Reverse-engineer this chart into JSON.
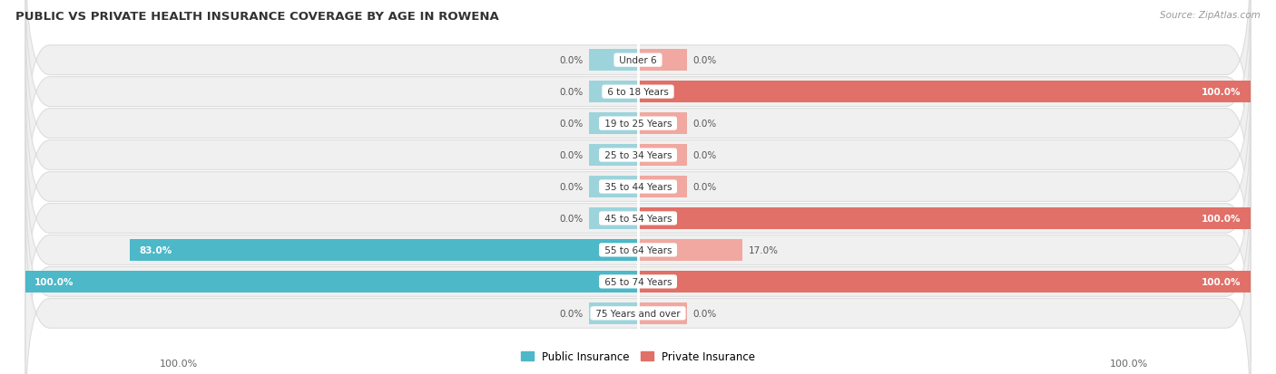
{
  "title": "PUBLIC VS PRIVATE HEALTH INSURANCE COVERAGE BY AGE IN ROWENA",
  "source": "Source: ZipAtlas.com",
  "age_groups": [
    "Under 6",
    "6 to 18 Years",
    "19 to 25 Years",
    "25 to 34 Years",
    "35 to 44 Years",
    "45 to 54 Years",
    "55 to 64 Years",
    "65 to 74 Years",
    "75 Years and over"
  ],
  "public": [
    0.0,
    0.0,
    0.0,
    0.0,
    0.0,
    0.0,
    83.0,
    100.0,
    0.0
  ],
  "private": [
    0.0,
    100.0,
    0.0,
    0.0,
    0.0,
    100.0,
    17.0,
    100.0,
    0.0
  ],
  "public_color": "#4db8c8",
  "private_color": "#e07068",
  "public_color_light": "#9dd4dc",
  "private_color_light": "#f0a8a0",
  "row_bg_color": "#f0f0f0",
  "row_border_color": "#dddddd",
  "label_val_dark": "#555555",
  "label_val_white": "#ffffff",
  "axis_label": "100.0%",
  "legend_public": "Public Insurance",
  "legend_private": "Private Insurance",
  "stub_size": 8.0,
  "max_val": 100.0
}
